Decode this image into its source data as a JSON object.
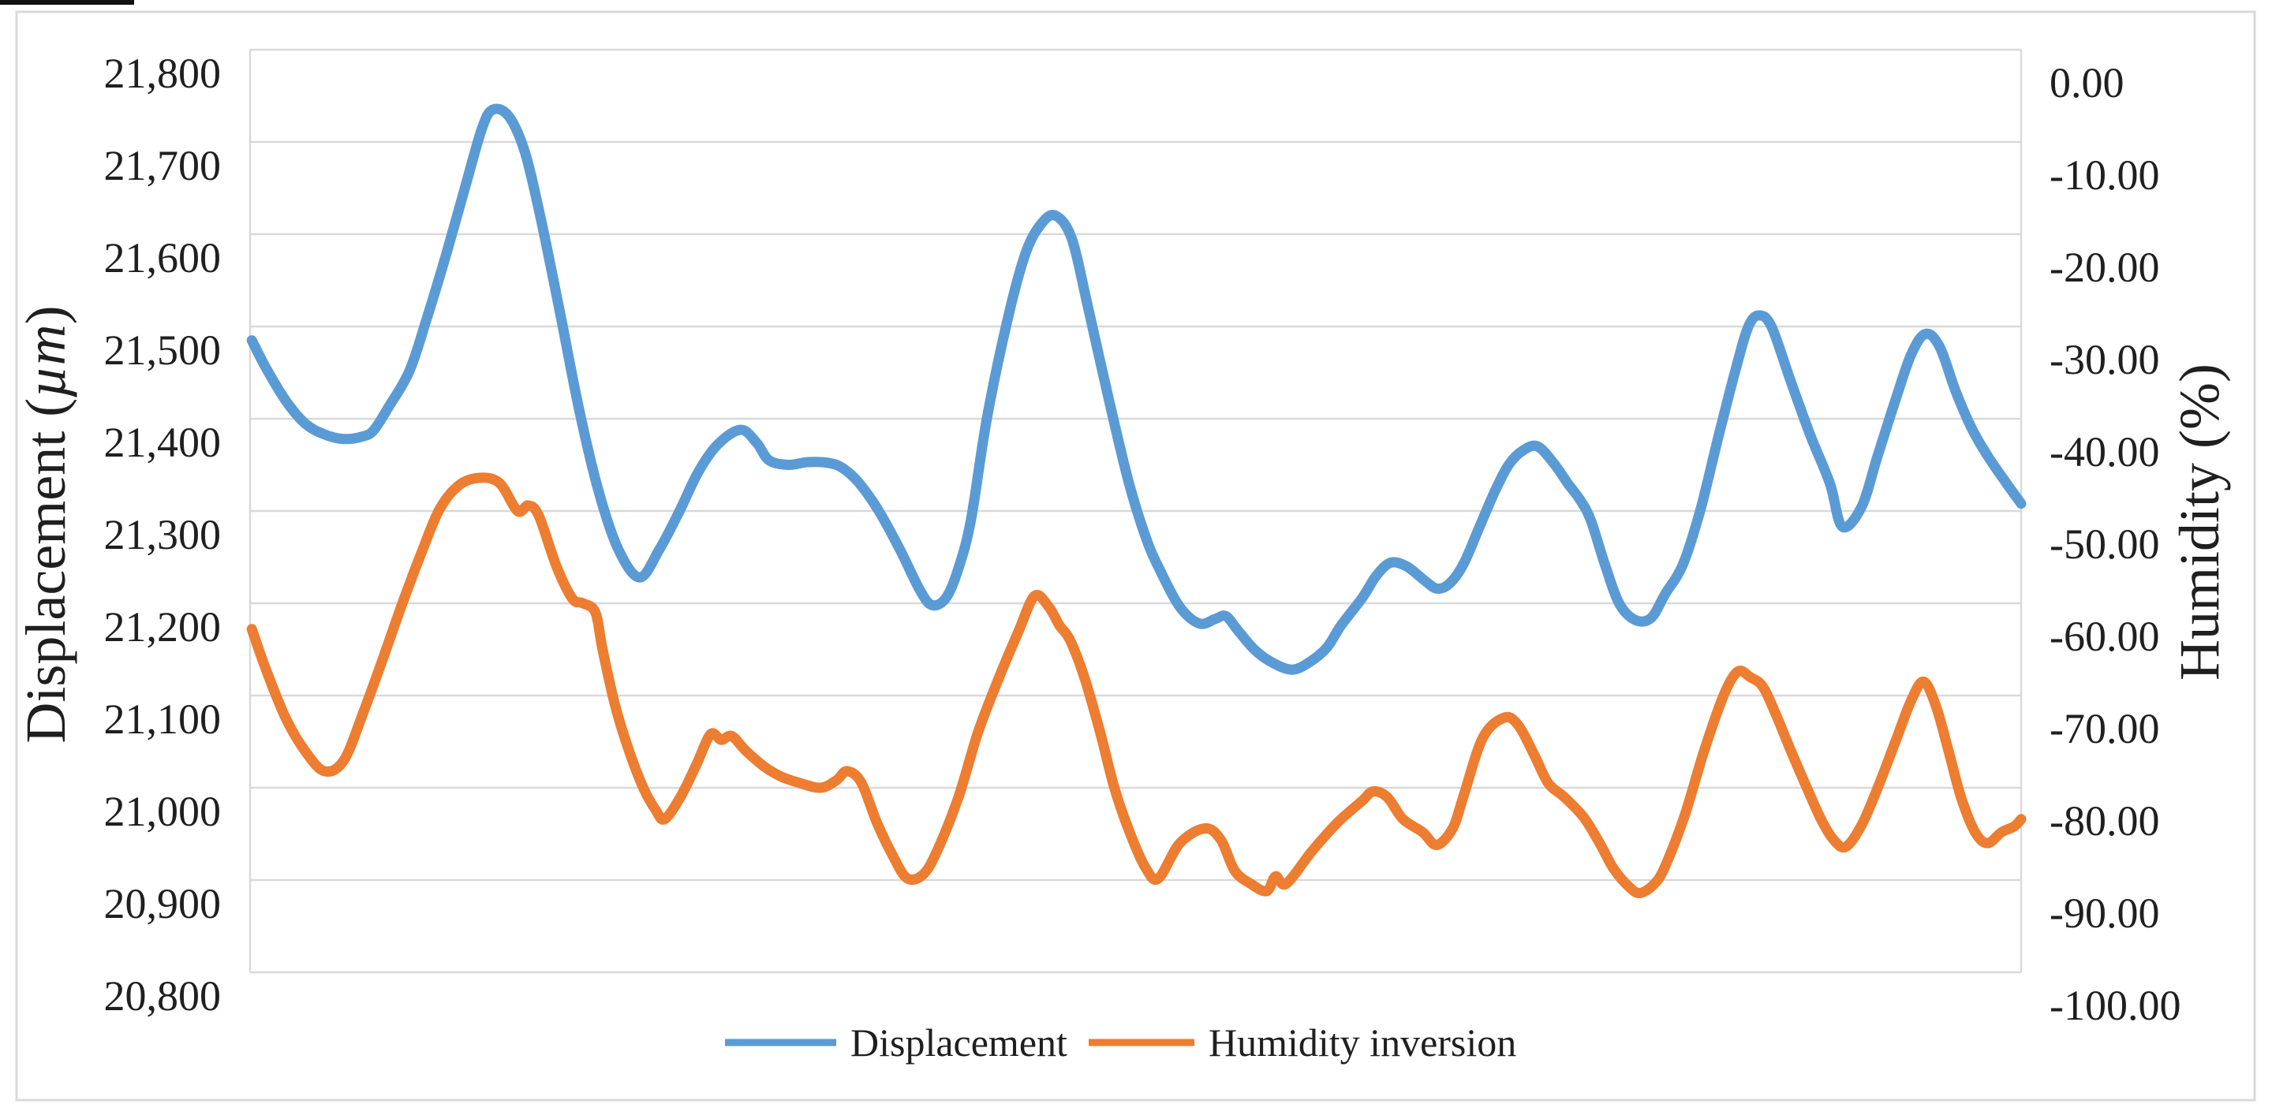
{
  "chart_data": {
    "type": "line",
    "title": "",
    "grid_color": "#D9D9D9",
    "border_color": "#D9D9D9",
    "background": "#FFFFFF",
    "left_axis": {
      "title_prefix": "Displacement (",
      "title_mu": "µm",
      "title_suffix": ")",
      "min": 20800,
      "max": 21800,
      "tick_step": 100,
      "ticks": [
        "21,800",
        "21,700",
        "21,600",
        "21,500",
        "21,400",
        "21,300",
        "21,200",
        "21,100",
        "21,000",
        "20,900",
        "20,800"
      ]
    },
    "right_axis": {
      "title": "Humidity (%)",
      "min": -100,
      "max": 0,
      "tick_step": 10,
      "ticks": [
        "0.00",
        "-10.00",
        "-20.00",
        "-30.00",
        "-40.00",
        "-50.00",
        "-60.00",
        "-70.00",
        "-80.00",
        "-90.00",
        "-100.00"
      ]
    },
    "x_axis": {
      "tick_labels_visible": false
    },
    "legend": {
      "position": "bottom",
      "items": [
        {
          "label": "Displacement",
          "color": "#5B9BD5"
        },
        {
          "label": "Humidity inversion",
          "color": "#ED7D31"
        }
      ]
    },
    "series": [
      {
        "name": "Displacement",
        "axis": "left",
        "color": "#5B9BD5",
        "points": [
          [
            0.001,
            21485
          ],
          [
            0.009,
            21455
          ],
          [
            0.02,
            21420
          ],
          [
            0.031,
            21395
          ],
          [
            0.042,
            21383
          ],
          [
            0.053,
            21378
          ],
          [
            0.064,
            21381
          ],
          [
            0.07,
            21388
          ],
          [
            0.078,
            21412
          ],
          [
            0.09,
            21452
          ],
          [
            0.1,
            21510
          ],
          [
            0.111,
            21580
          ],
          [
            0.122,
            21655
          ],
          [
            0.131,
            21715
          ],
          [
            0.137,
            21735
          ],
          [
            0.146,
            21728
          ],
          [
            0.155,
            21690
          ],
          [
            0.164,
            21618
          ],
          [
            0.175,
            21515
          ],
          [
            0.186,
            21408
          ],
          [
            0.197,
            21320
          ],
          [
            0.208,
            21258
          ],
          [
            0.22,
            21228
          ],
          [
            0.231,
            21258
          ],
          [
            0.242,
            21298
          ],
          [
            0.253,
            21342
          ],
          [
            0.264,
            21372
          ],
          [
            0.277,
            21388
          ],
          [
            0.286,
            21374
          ],
          [
            0.293,
            21355
          ],
          [
            0.304,
            21350
          ],
          [
            0.315,
            21353
          ],
          [
            0.327,
            21352
          ],
          [
            0.335,
            21346
          ],
          [
            0.344,
            21330
          ],
          [
            0.355,
            21300
          ],
          [
            0.367,
            21258
          ],
          [
            0.378,
            21215
          ],
          [
            0.385,
            21198
          ],
          [
            0.393,
            21206
          ],
          [
            0.4,
            21238
          ],
          [
            0.407,
            21290
          ],
          [
            0.416,
            21400
          ],
          [
            0.428,
            21510
          ],
          [
            0.438,
            21580
          ],
          [
            0.447,
            21612
          ],
          [
            0.455,
            21620
          ],
          [
            0.464,
            21595
          ],
          [
            0.473,
            21522
          ],
          [
            0.485,
            21420
          ],
          [
            0.496,
            21332
          ],
          [
            0.506,
            21270
          ],
          [
            0.514,
            21235
          ],
          [
            0.525,
            21196
          ],
          [
            0.536,
            21178
          ],
          [
            0.545,
            21183
          ],
          [
            0.551,
            21186
          ],
          [
            0.558,
            21170
          ],
          [
            0.567,
            21150
          ],
          [
            0.576,
            21137
          ],
          [
            0.588,
            21128
          ],
          [
            0.598,
            21136
          ],
          [
            0.608,
            21152
          ],
          [
            0.616,
            21176
          ],
          [
            0.628,
            21206
          ],
          [
            0.636,
            21230
          ],
          [
            0.644,
            21244
          ],
          [
            0.653,
            21240
          ],
          [
            0.663,
            21225
          ],
          [
            0.67,
            21216
          ],
          [
            0.677,
            21221
          ],
          [
            0.685,
            21242
          ],
          [
            0.694,
            21282
          ],
          [
            0.703,
            21322
          ],
          [
            0.711,
            21351
          ],
          [
            0.719,
            21366
          ],
          [
            0.727,
            21370
          ],
          [
            0.736,
            21352
          ],
          [
            0.744,
            21330
          ],
          [
            0.751,
            21312
          ],
          [
            0.757,
            21290
          ],
          [
            0.765,
            21242
          ],
          [
            0.773,
            21200
          ],
          [
            0.782,
            21182
          ],
          [
            0.791,
            21184
          ],
          [
            0.799,
            21210
          ],
          [
            0.809,
            21242
          ],
          [
            0.819,
            21302
          ],
          [
            0.829,
            21380
          ],
          [
            0.839,
            21455
          ],
          [
            0.846,
            21500
          ],
          [
            0.852,
            21512
          ],
          [
            0.859,
            21500
          ],
          [
            0.87,
            21440
          ],
          [
            0.881,
            21382
          ],
          [
            0.892,
            21330
          ],
          [
            0.899,
            21283
          ],
          [
            0.91,
            21305
          ],
          [
            0.919,
            21360
          ],
          [
            0.929,
            21420
          ],
          [
            0.938,
            21470
          ],
          [
            0.946,
            21492
          ],
          [
            0.954,
            21478
          ],
          [
            0.963,
            21430
          ],
          [
            0.972,
            21390
          ],
          [
            0.981,
            21360
          ],
          [
            0.991,
            21332
          ],
          [
            1.0,
            21308
          ]
        ]
      },
      {
        "name": "Humidity inversion",
        "axis": "right",
        "color": "#ED7D31",
        "points": [
          [
            0.001,
            -62.8
          ],
          [
            0.009,
            -67.2
          ],
          [
            0.02,
            -72.4
          ],
          [
            0.031,
            -76.0
          ],
          [
            0.042,
            -78.2
          ],
          [
            0.053,
            -77.0
          ],
          [
            0.064,
            -71.8
          ],
          [
            0.075,
            -66.0
          ],
          [
            0.086,
            -60.0
          ],
          [
            0.097,
            -54.4
          ],
          [
            0.107,
            -49.8
          ],
          [
            0.118,
            -47.2
          ],
          [
            0.13,
            -46.4
          ],
          [
            0.141,
            -47.0
          ],
          [
            0.151,
            -50.0
          ],
          [
            0.157,
            -49.4
          ],
          [
            0.163,
            -50.5
          ],
          [
            0.173,
            -56.0
          ],
          [
            0.182,
            -59.5
          ],
          [
            0.188,
            -60.0
          ],
          [
            0.195,
            -61.0
          ],
          [
            0.199,
            -65.0
          ],
          [
            0.206,
            -71.0
          ],
          [
            0.214,
            -76.0
          ],
          [
            0.222,
            -80.0
          ],
          [
            0.229,
            -82.4
          ],
          [
            0.234,
            -83.4
          ],
          [
            0.243,
            -81.0
          ],
          [
            0.252,
            -77.5
          ],
          [
            0.26,
            -74.2
          ],
          [
            0.266,
            -74.8
          ],
          [
            0.272,
            -74.4
          ],
          [
            0.28,
            -76.0
          ],
          [
            0.291,
            -77.8
          ],
          [
            0.3,
            -78.8
          ],
          [
            0.309,
            -79.4
          ],
          [
            0.322,
            -80.0
          ],
          [
            0.331,
            -79.2
          ],
          [
            0.337,
            -78.2
          ],
          [
            0.345,
            -79.4
          ],
          [
            0.354,
            -83.8
          ],
          [
            0.363,
            -87.4
          ],
          [
            0.371,
            -89.8
          ],
          [
            0.38,
            -89.4
          ],
          [
            0.388,
            -86.8
          ],
          [
            0.4,
            -81.0
          ],
          [
            0.411,
            -74.0
          ],
          [
            0.423,
            -68.0
          ],
          [
            0.434,
            -63.0
          ],
          [
            0.443,
            -59.2
          ],
          [
            0.451,
            -60.4
          ],
          [
            0.457,
            -62.4
          ],
          [
            0.463,
            -64.0
          ],
          [
            0.471,
            -68.0
          ],
          [
            0.48,
            -74.0
          ],
          [
            0.488,
            -80.0
          ],
          [
            0.497,
            -85.0
          ],
          [
            0.506,
            -88.8
          ],
          [
            0.513,
            -89.8
          ],
          [
            0.525,
            -86.0
          ],
          [
            0.539,
            -84.4
          ],
          [
            0.548,
            -85.6
          ],
          [
            0.556,
            -89.0
          ],
          [
            0.565,
            -90.4
          ],
          [
            0.574,
            -91.2
          ],
          [
            0.579,
            -89.6
          ],
          [
            0.585,
            -90.4
          ],
          [
            0.599,
            -87.0
          ],
          [
            0.608,
            -85.0
          ],
          [
            0.616,
            -83.4
          ],
          [
            0.628,
            -81.4
          ],
          [
            0.634,
            -80.4
          ],
          [
            0.642,
            -81.0
          ],
          [
            0.651,
            -83.4
          ],
          [
            0.662,
            -84.8
          ],
          [
            0.67,
            -86.2
          ],
          [
            0.679,
            -84.4
          ],
          [
            0.685,
            -81.0
          ],
          [
            0.696,
            -74.6
          ],
          [
            0.708,
            -72.4
          ],
          [
            0.716,
            -73.2
          ],
          [
            0.725,
            -76.4
          ],
          [
            0.733,
            -79.5
          ],
          [
            0.742,
            -81.0
          ],
          [
            0.753,
            -83.2
          ],
          [
            0.762,
            -86.0
          ],
          [
            0.77,
            -88.8
          ],
          [
            0.779,
            -90.8
          ],
          [
            0.785,
            -91.4
          ],
          [
            0.793,
            -90.4
          ],
          [
            0.799,
            -88.5
          ],
          [
            0.81,
            -83.0
          ],
          [
            0.821,
            -76.0
          ],
          [
            0.832,
            -70.0
          ],
          [
            0.84,
            -67.4
          ],
          [
            0.847,
            -68.0
          ],
          [
            0.854,
            -69.0
          ],
          [
            0.861,
            -71.8
          ],
          [
            0.87,
            -76.0
          ],
          [
            0.879,
            -80.0
          ],
          [
            0.887,
            -83.4
          ],
          [
            0.894,
            -85.6
          ],
          [
            0.901,
            -86.4
          ],
          [
            0.91,
            -84.0
          ],
          [
            0.919,
            -80.0
          ],
          [
            0.929,
            -75.0
          ],
          [
            0.938,
            -70.5
          ],
          [
            0.945,
            -68.5
          ],
          [
            0.952,
            -71.2
          ],
          [
            0.959,
            -76.0
          ],
          [
            0.966,
            -81.0
          ],
          [
            0.974,
            -84.8
          ],
          [
            0.981,
            -86.0
          ],
          [
            0.989,
            -84.8
          ],
          [
            0.996,
            -84.2
          ],
          [
            1.0,
            -83.4
          ]
        ]
      }
    ]
  }
}
